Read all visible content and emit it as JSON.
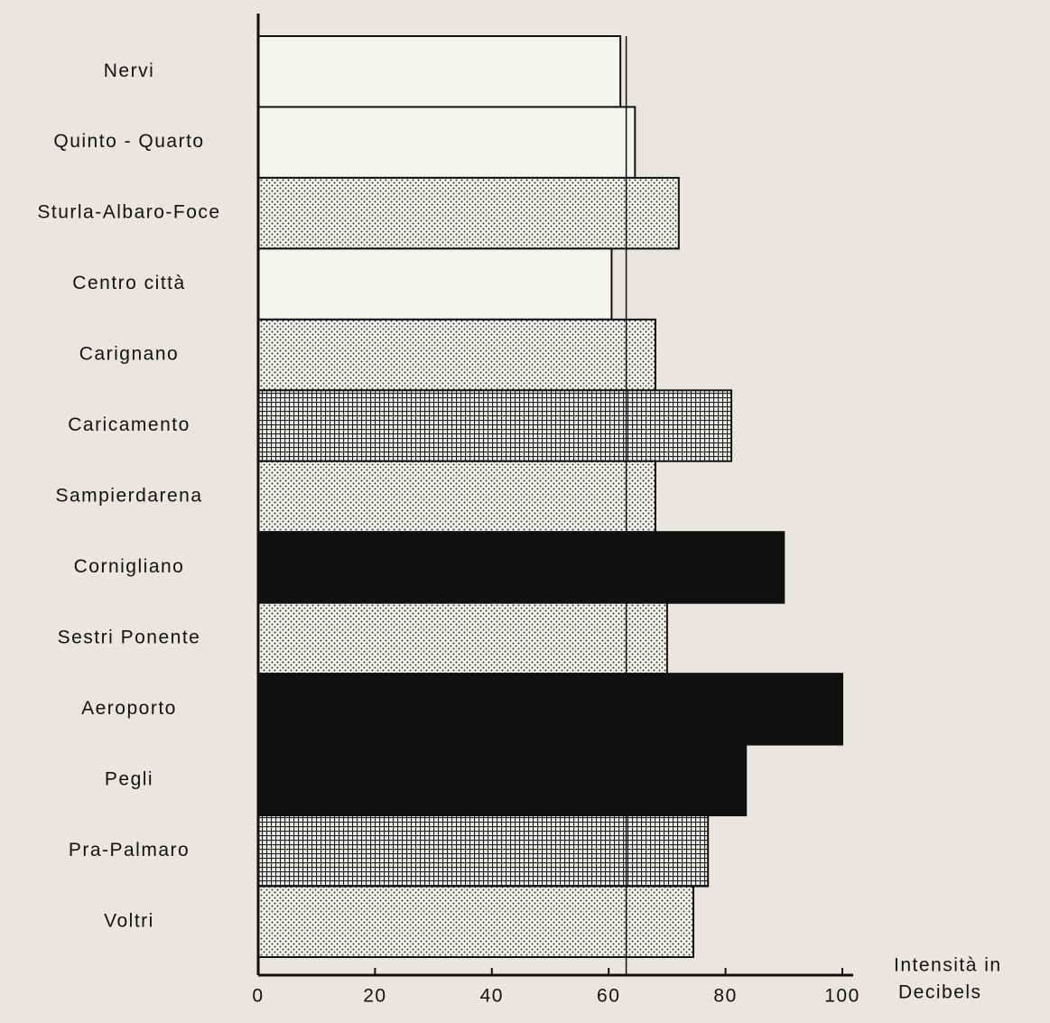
{
  "chart_data": {
    "type": "barh",
    "categories": [
      "Nervi",
      "Quinto - Quarto",
      "Sturla-Albaro-Foce",
      "Centro città",
      "Carignano",
      "Caricamento",
      "Sampierdarena",
      "Cornigliano",
      "Sestri Ponente",
      "Aeroporto",
      "Pegli",
      "Pra-Palmaro",
      "Voltri"
    ],
    "values": [
      62,
      64.5,
      72,
      60.5,
      68,
      81,
      68,
      90,
      70,
      100,
      83.5,
      77,
      74.5
    ],
    "fills": [
      "white",
      "white",
      "dots",
      "white",
      "dots",
      "grid",
      "dots",
      "black",
      "dots",
      "black",
      "black",
      "grid",
      "dots"
    ],
    "threshold": 63,
    "xlim": [
      0,
      100
    ],
    "xticks": [
      0,
      20,
      40,
      60,
      80,
      100
    ],
    "x_label": [
      "Intensità in",
      "Decibels"
    ]
  }
}
